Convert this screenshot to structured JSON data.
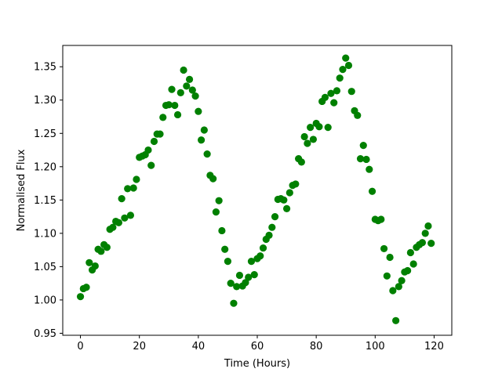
{
  "chart_data": {
    "type": "scatter",
    "title": "",
    "xlabel": "Time (Hours)",
    "ylabel": "Normalised Flux",
    "xlim": [
      -6,
      126
    ],
    "ylim": [
      0.947,
      1.382
    ],
    "xticks": [
      0,
      20,
      40,
      60,
      80,
      100,
      120
    ],
    "xtick_labels": [
      "0",
      "20",
      "40",
      "60",
      "80",
      "100",
      "120"
    ],
    "yticks": [
      0.95,
      1.0,
      1.05,
      1.1,
      1.15,
      1.2,
      1.25,
      1.3,
      1.35
    ],
    "ytick_labels": [
      "0.95",
      "1.00",
      "1.05",
      "1.10",
      "1.15",
      "1.20",
      "1.25",
      "1.30",
      "1.35"
    ],
    "grid": false,
    "marker_color": "#008000",
    "series": [
      {
        "x": [
          0,
          1,
          2,
          3,
          4,
          5,
          6,
          7,
          8,
          9,
          10,
          11,
          12,
          13,
          14,
          15,
          16,
          17,
          18,
          19,
          20,
          21,
          22,
          23,
          24,
          25,
          26,
          27,
          28,
          29,
          30,
          31,
          32,
          33,
          34,
          35,
          36,
          37,
          38,
          39,
          40,
          41,
          42,
          43,
          44,
          45,
          46,
          47,
          48,
          49,
          50,
          51,
          52,
          53,
          54,
          55,
          56,
          57,
          58,
          59,
          60,
          61,
          62,
          63,
          64,
          65,
          66,
          67,
          68,
          69,
          70,
          71,
          72,
          73,
          74,
          75,
          76,
          77,
          78,
          79,
          80,
          81,
          82,
          83,
          84,
          85,
          86,
          87,
          88,
          89,
          90,
          91,
          92,
          93,
          94,
          95,
          96,
          97,
          98,
          99,
          100,
          101,
          102,
          103,
          104,
          105,
          106,
          107,
          108,
          109,
          110,
          111,
          112,
          113,
          114,
          115,
          116,
          117,
          118,
          119
        ],
        "y": [
          1.005,
          1.017,
          1.019,
          1.056,
          1.045,
          1.051,
          1.076,
          1.073,
          1.083,
          1.079,
          1.106,
          1.109,
          1.118,
          1.116,
          1.152,
          1.123,
          1.167,
          1.127,
          1.168,
          1.181,
          1.214,
          1.216,
          1.218,
          1.225,
          1.202,
          1.238,
          1.249,
          1.249,
          1.274,
          1.292,
          1.293,
          1.316,
          1.292,
          1.278,
          1.311,
          1.345,
          1.321,
          1.331,
          1.315,
          1.306,
          1.283,
          1.24,
          1.255,
          1.219,
          1.187,
          1.182,
          1.132,
          1.149,
          1.104,
          1.076,
          1.058,
          1.025,
          0.995,
          1.02,
          1.037,
          1.021,
          1.026,
          1.034,
          1.058,
          1.038,
          1.062,
          1.066,
          1.078,
          1.091,
          1.097,
          1.109,
          1.125,
          1.151,
          1.152,
          1.15,
          1.137,
          1.161,
          1.172,
          1.174,
          1.212,
          1.207,
          1.245,
          1.235,
          1.259,
          1.241,
          1.265,
          1.26,
          1.298,
          1.304,
          1.259,
          1.31,
          1.296,
          1.314,
          1.333,
          1.346,
          1.363,
          1.352,
          1.313,
          1.284,
          1.277,
          1.212,
          1.232,
          1.211,
          1.196,
          1.163,
          1.121,
          1.119,
          1.121,
          1.077,
          1.036,
          1.064,
          1.014,
          0.969,
          1.02,
          1.029,
          1.042,
          1.044,
          1.071,
          1.054,
          1.079,
          1.083,
          1.086,
          1.1,
          1.111,
          1.085
        ]
      }
    ]
  }
}
